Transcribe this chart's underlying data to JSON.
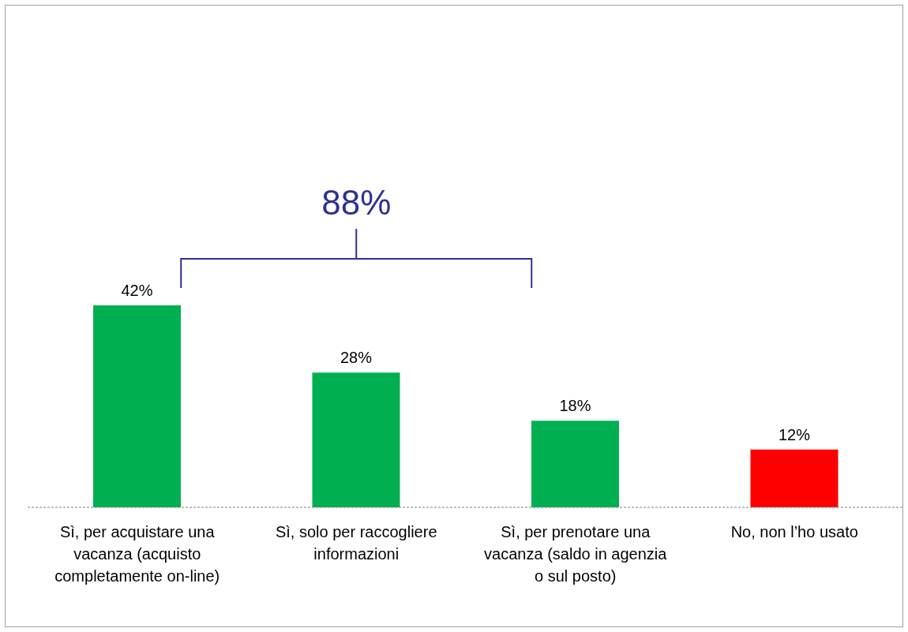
{
  "chart_data": {
    "type": "bar",
    "categories": [
      "Sì, per acquistare una vacanza (acquisto completamente  on-line)",
      "Sì, solo per raccogliere informazioni",
      "Sì, per  prenotare una vacanza (saldo in agenzia o sul posto)",
      "No, non l’ho usato"
    ],
    "values": [
      42,
      28,
      18,
      12
    ],
    "colors": [
      "#00b050",
      "#00b050",
      "#00b050",
      "#ff0000"
    ],
    "value_labels": [
      "42%",
      "28%",
      "18%",
      "12%"
    ],
    "annotations": [
      "88%"
    ]
  }
}
